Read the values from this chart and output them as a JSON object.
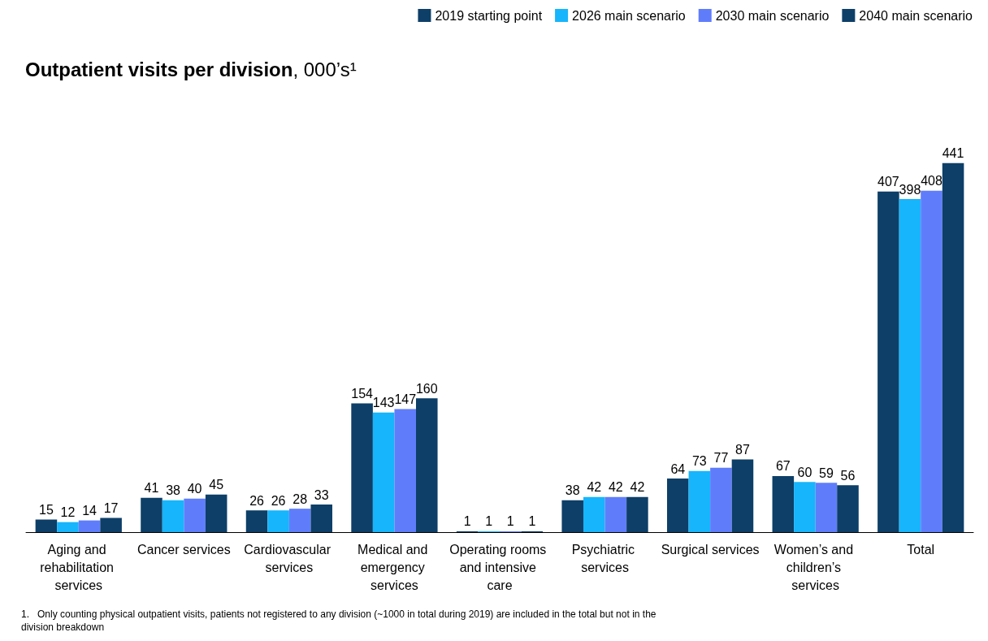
{
  "chart_data": {
    "type": "bar",
    "title": "Outpatient visits per division, 000’s¹",
    "categories": [
      "Aging and rehabilitation services",
      "Cancer services",
      "Cardiovascular services",
      "Medical and emergency services",
      "Operating rooms and intensive care",
      "Psychiatric services",
      "Surgical services",
      "Women’s and children’s services",
      "Total"
    ],
    "series": [
      {
        "name": "2019 starting point",
        "color": "#0d3f68",
        "values": [
          15,
          41,
          26,
          154,
          1,
          38,
          64,
          67,
          407
        ]
      },
      {
        "name": "2026 main scenario",
        "color": "#17b5fb",
        "values": [
          12,
          38,
          26,
          143,
          1,
          42,
          73,
          60,
          398
        ]
      },
      {
        "name": "2030 main scenario",
        "color": "#5f7dfb",
        "values": [
          14,
          40,
          28,
          147,
          1,
          42,
          77,
          59,
          408
        ]
      },
      {
        "name": "2040 main scenario",
        "color": "#0d3f68",
        "values": [
          17,
          45,
          33,
          160,
          1,
          42,
          87,
          56,
          441
        ]
      }
    ],
    "data_labels": true,
    "legend": "top right",
    "annotations": [
      "1.   Only counting physical outpatient visits, patients not registered to any division (~1000 in total during 2019) are included in the total but not in the division breakdown"
    ]
  }
}
